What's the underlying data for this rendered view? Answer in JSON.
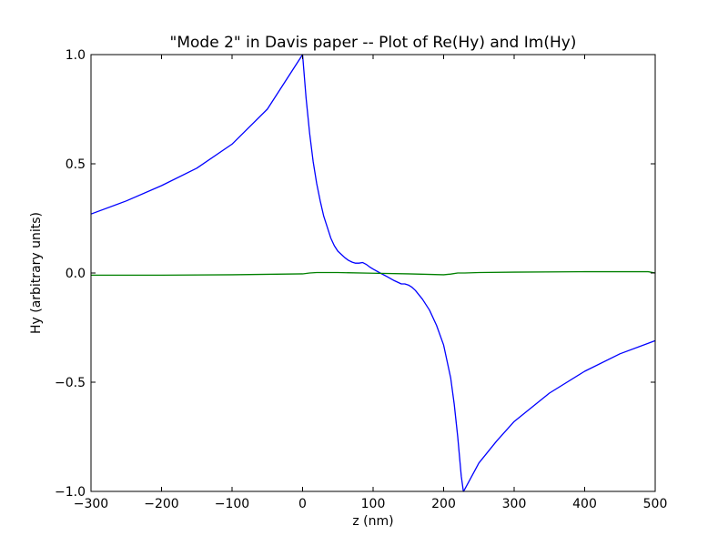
{
  "chart_data": {
    "type": "line",
    "title": "\"Mode 2\" in Davis paper -- Plot of Re(Hy) and Im(Hy)",
    "xlabel": "z (nm)",
    "ylabel": "Hy (arbitrary units)",
    "xlim": [
      -300,
      500
    ],
    "ylim": [
      -1.0,
      1.0
    ],
    "grid": false,
    "legend": "none",
    "xticks": [
      -300,
      -200,
      -100,
      0,
      100,
      200,
      300,
      400,
      500
    ],
    "xtick_labels": [
      "−300",
      "−200",
      "−100",
      "0",
      "100",
      "200",
      "300",
      "400",
      "500"
    ],
    "yticks": [
      1.0,
      0.5,
      0.0,
      -0.5,
      -1.0
    ],
    "ytick_labels": [
      "1.0",
      "0.5",
      "0.0",
      "−0.5",
      "−1.0"
    ],
    "series": [
      {
        "color": "#0000ff",
        "x": [
          -300,
          -250,
          -200,
          -150,
          -100,
          -50,
          0,
          5,
          10,
          15,
          20,
          25,
          30,
          35,
          40,
          45,
          50,
          55,
          60,
          65,
          70,
          75,
          80,
          85,
          90,
          95,
          100,
          110,
          120,
          130,
          140,
          145,
          150,
          155,
          160,
          170,
          180,
          190,
          200,
          210,
          215,
          220,
          225,
          228,
          230,
          240,
          250,
          275,
          300,
          350,
          400,
          450,
          500
        ],
        "y": [
          0.27,
          0.33,
          0.4,
          0.48,
          0.59,
          0.75,
          1.0,
          0.8,
          0.64,
          0.51,
          0.41,
          0.33,
          0.26,
          0.21,
          0.16,
          0.125,
          0.1,
          0.085,
          0.07,
          0.058,
          0.05,
          0.045,
          0.045,
          0.048,
          0.04,
          0.028,
          0.018,
          0.0,
          -0.017,
          -0.035,
          -0.05,
          -0.05,
          -0.055,
          -0.065,
          -0.08,
          -0.12,
          -0.17,
          -0.24,
          -0.33,
          -0.48,
          -0.6,
          -0.75,
          -0.93,
          -1.0,
          -0.99,
          -0.93,
          -0.87,
          -0.77,
          -0.68,
          -0.55,
          -0.45,
          -0.37,
          -0.31
        ]
      },
      {
        "color": "#008000",
        "x": [
          -300,
          -200,
          -100,
          -50,
          0,
          10,
          20,
          50,
          100,
          150,
          200,
          210,
          220,
          230,
          250,
          300,
          400,
          490,
          500
        ],
        "y": [
          -0.01,
          -0.01,
          -0.008,
          -0.006,
          -0.004,
          0.0,
          0.002,
          0.002,
          -0.001,
          -0.004,
          -0.008,
          -0.005,
          0.0,
          0.0,
          0.002,
          0.004,
          0.006,
          0.006,
          0.0
        ]
      }
    ]
  }
}
